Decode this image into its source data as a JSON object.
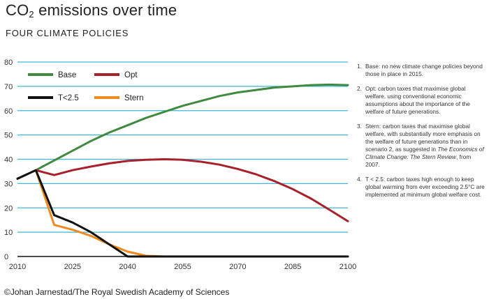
{
  "header": {
    "title_prefix": "CO",
    "title_sub": "2",
    "title_suffix": " emissions over time",
    "subtitle": "FOUR CLIMATE POLICIES"
  },
  "notes": [
    {
      "num": "1.",
      "text": "Base: no new climate change policies beyond those in place in 2015."
    },
    {
      "num": "2.",
      "text": "Opt: carbon taxes that maximise global welfare, using conventional economic assumptions about the importance of the welfare of future generations."
    },
    {
      "num": "3.",
      "text_before": "Stern: carbon taxes that maximise global welfare, with substantially more emphasis on the welfare of future generations than in scenario 2, as suggested in ",
      "text_italic": "The Economics of Climate Change: The Stern Review",
      "text_after": ", from 2007."
    },
    {
      "num": "4.",
      "text": "T < 2.5: carbon taxes high enough to keep global warming from ever exceeding 2.5°C are implemented at minimum global welfare cost."
    }
  ],
  "credit": "©Johan Jarnestad/The Royal Swedish Academy of Sciences",
  "colors": {
    "grid": "#3fb6d6",
    "axis": "#111111",
    "base": "#3f8a3f",
    "opt": "#a8202a",
    "t25": "#111111",
    "stern": "#f08a1f"
  },
  "chart_data": {
    "type": "line",
    "title": "",
    "xlabel": "",
    "ylabel": "",
    "xlim": [
      2010,
      2100
    ],
    "ylim": [
      0,
      80
    ],
    "xticks": [
      2010,
      2025,
      2040,
      2055,
      2070,
      2085,
      2100
    ],
    "yticks": [
      0,
      10,
      20,
      30,
      40,
      50,
      60,
      70,
      80
    ],
    "grid": "horizontal",
    "legend_placement": "top-left",
    "series": [
      {
        "name": "Base",
        "color_key": "base",
        "x": [
          2010,
          2015,
          2020,
          2025,
          2030,
          2035,
          2040,
          2045,
          2050,
          2055,
          2060,
          2065,
          2070,
          2075,
          2080,
          2085,
          2090,
          2095,
          2100
        ],
        "y": [
          32,
          35.5,
          39.5,
          43.5,
          47.5,
          51,
          54,
          57,
          59.5,
          62,
          64,
          66,
          67.5,
          68.5,
          69.5,
          70,
          70.5,
          70.7,
          70.5
        ]
      },
      {
        "name": "Opt",
        "color_key": "opt",
        "x": [
          2010,
          2015,
          2020,
          2025,
          2030,
          2035,
          2040,
          2045,
          2050,
          2055,
          2060,
          2065,
          2070,
          2075,
          2080,
          2085,
          2090,
          2095,
          2100
        ],
        "y": [
          32,
          35.5,
          33.5,
          35.5,
          37,
          38.3,
          39.3,
          39.8,
          40,
          39.8,
          39,
          37.8,
          36,
          33.8,
          31,
          27.7,
          23.8,
          19.2,
          14.5
        ]
      },
      {
        "name": "T<2.5",
        "color_key": "t25",
        "x": [
          2010,
          2015,
          2020,
          2025,
          2030,
          2035,
          2040,
          2045,
          2050,
          2060,
          2070,
          2080,
          2090,
          2100
        ],
        "y": [
          32,
          35.5,
          17,
          14,
          10,
          5,
          0,
          0,
          0,
          0,
          0,
          0,
          0,
          0
        ]
      },
      {
        "name": "Stern",
        "color_key": "stern",
        "x": [
          2015,
          2020,
          2025,
          2030,
          2035,
          2040,
          2045,
          2050
        ],
        "y": [
          35.5,
          13,
          11,
          8.5,
          5,
          2,
          0.3,
          0
        ]
      }
    ]
  }
}
